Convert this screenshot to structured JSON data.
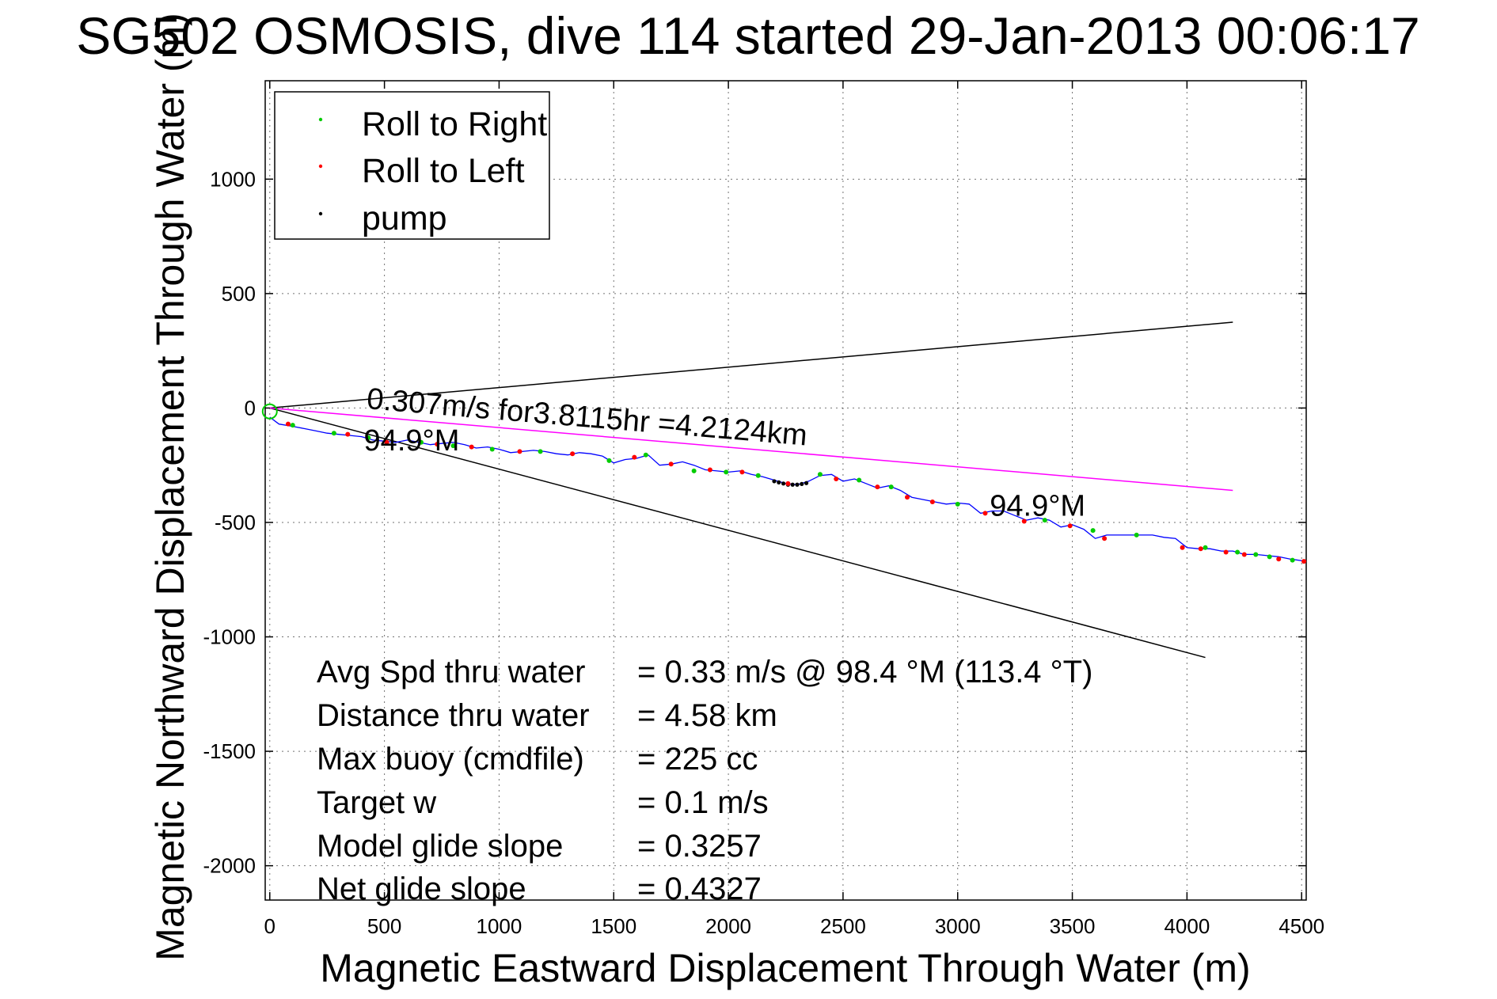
{
  "chart_data": {
    "type": "line",
    "title": "SG502 OSMOSIS, dive 114 started 29-Jan-2013 00:06:17",
    "xlabel": "Magnetic Eastward Displacement Through Water (m)",
    "ylabel": "Magnetic Northward Displacement Through Water (m)",
    "xlim": [
      -20,
      4520
    ],
    "ylim": [
      -2150,
      1430
    ],
    "xticks": [
      0,
      500,
      1000,
      1500,
      2000,
      2500,
      3000,
      3500,
      4000,
      4500
    ],
    "yticks": [
      1000,
      500,
      0,
      -500,
      -1000,
      -1500,
      -2000
    ],
    "xtick_labels": [
      "0",
      "500",
      "1000",
      "1500",
      "2000",
      "2500",
      "3000",
      "3500",
      "4000",
      "4500"
    ],
    "ytick_labels": [
      "1000",
      "500",
      "0",
      "-500",
      "-1000",
      "-1500",
      "-2000"
    ],
    "grid": true,
    "legend": {
      "placement": "top-left",
      "entries": [
        {
          "label": "Roll to Right",
          "color": "#00cc00"
        },
        {
          "label": "Roll to Left",
          "color": "#ff0000"
        },
        {
          "label": "pump",
          "color": "#000000"
        }
      ]
    },
    "track": {
      "color": "#0000ff",
      "x": [
        0,
        40,
        100,
        150,
        200,
        250,
        300,
        350,
        400,
        450,
        500,
        550,
        600,
        650,
        700,
        750,
        800,
        850,
        900,
        950,
        1000,
        1050,
        1100,
        1150,
        1200,
        1250,
        1300,
        1350,
        1400,
        1450,
        1500,
        1550,
        1600,
        1650,
        1700,
        1750,
        1800,
        1850,
        1900,
        1950,
        2000,
        2050,
        2100,
        2150,
        2200,
        2250,
        2300,
        2350,
        2400,
        2450,
        2500,
        2550,
        2600,
        2650,
        2700,
        2750,
        2800,
        2850,
        2900,
        2950,
        3000,
        3050,
        3100,
        3150,
        3200,
        3250,
        3300,
        3350,
        3400,
        3450,
        3500,
        3550,
        3600,
        3650,
        3700,
        3750,
        3800,
        3850,
        3900,
        3950,
        4000,
        4050,
        4100,
        4150,
        4200,
        4250,
        4300,
        4350,
        4400,
        4450,
        4520
      ],
      "y": [
        -40,
        -70,
        -80,
        -90,
        -100,
        -110,
        -115,
        -120,
        -125,
        -140,
        -145,
        -150,
        -140,
        -150,
        -160,
        -155,
        -150,
        -160,
        -175,
        -170,
        -180,
        -195,
        -190,
        -185,
        -190,
        -200,
        -205,
        -195,
        -200,
        -210,
        -240,
        -225,
        -220,
        -205,
        -250,
        -245,
        -235,
        -250,
        -270,
        -275,
        -280,
        -275,
        -290,
        -300,
        -315,
        -330,
        -335,
        -320,
        -295,
        -290,
        -320,
        -310,
        -330,
        -350,
        -340,
        -360,
        -390,
        -400,
        -410,
        -420,
        -415,
        -420,
        -460,
        -450,
        -450,
        -470,
        -490,
        -480,
        -490,
        -520,
        -510,
        -530,
        -570,
        -555,
        -555,
        -555,
        -555,
        -555,
        -565,
        -570,
        -610,
        -615,
        -615,
        -625,
        -625,
        -640,
        -640,
        -645,
        -650,
        -660,
        -670
      ]
    },
    "roll_right_points": {
      "color": "#00cc00",
      "x": [
        100,
        280,
        430,
        660,
        800,
        970,
        1180,
        1480,
        1640,
        1850,
        1990,
        2130,
        2400,
        2570,
        2710,
        3000,
        3380,
        3590,
        3780,
        4080,
        4220,
        4300,
        4360,
        4460
      ],
      "y": [
        -75,
        -110,
        -130,
        -150,
        -165,
        -180,
        -190,
        -230,
        -205,
        -275,
        -280,
        -295,
        -290,
        -315,
        -345,
        -420,
        -490,
        -535,
        -555,
        -610,
        -630,
        -640,
        -650,
        -665
      ]
    },
    "roll_left_points": {
      "color": "#ff0000",
      "x": [
        80,
        340,
        510,
        730,
        880,
        1090,
        1320,
        1590,
        1750,
        1920,
        2060,
        2260,
        2470,
        2650,
        2780,
        2890,
        3120,
        3290,
        3490,
        3640,
        3980,
        4060,
        4170,
        4250,
        4400,
        4510
      ],
      "y": [
        -70,
        -115,
        -150,
        -158,
        -170,
        -190,
        -200,
        -215,
        -245,
        -270,
        -280,
        -330,
        -310,
        -345,
        -390,
        -410,
        -460,
        -495,
        -515,
        -570,
        -610,
        -615,
        -630,
        -640,
        -660,
        -670
      ]
    },
    "pump_points": {
      "color": "#000000",
      "x": [
        2200,
        2220,
        2240,
        2260,
        2280,
        2300,
        2320,
        2340
      ],
      "y": [
        -320,
        -325,
        -330,
        -335,
        -335,
        -335,
        -332,
        -328
      ]
    },
    "reference_lines": [
      {
        "color": "#000000",
        "x": [
          0,
          4200
        ],
        "y": [
          0,
          375
        ]
      },
      {
        "color": "#000000",
        "x": [
          0,
          4080
        ],
        "y": [
          0,
          -1090
        ]
      },
      {
        "color": "#ff00ff",
        "x": [
          0,
          4200
        ],
        "y": [
          0,
          -360
        ]
      }
    ],
    "annotations": [
      {
        "text": "0.307m/s for3.8115hr =4.2124km",
        "x": 420,
        "y": -2,
        "rotate": 4.8
      },
      {
        "text": "94.9°M",
        "x": 410,
        "y": -185,
        "rotate": 0
      },
      {
        "text": "94.9°M",
        "x": 3140,
        "y": -470,
        "rotate": 0
      }
    ],
    "stats": [
      {
        "label": "Avg Spd thru water",
        "value": "=  0.33 m/s @  98.4 °M (113.4 °T)"
      },
      {
        "label": "Distance thru water",
        "value": "=  4.58 km"
      },
      {
        "label": "Max buoy (cmdfile)",
        "value": "= 225 cc"
      },
      {
        "label": "Target w",
        "value": "= 0.1 m/s"
      },
      {
        "label": "Model glide slope",
        "value": "= 0.3257"
      },
      {
        "label": "Net glide slope",
        "value": "= 0.4327"
      }
    ]
  }
}
